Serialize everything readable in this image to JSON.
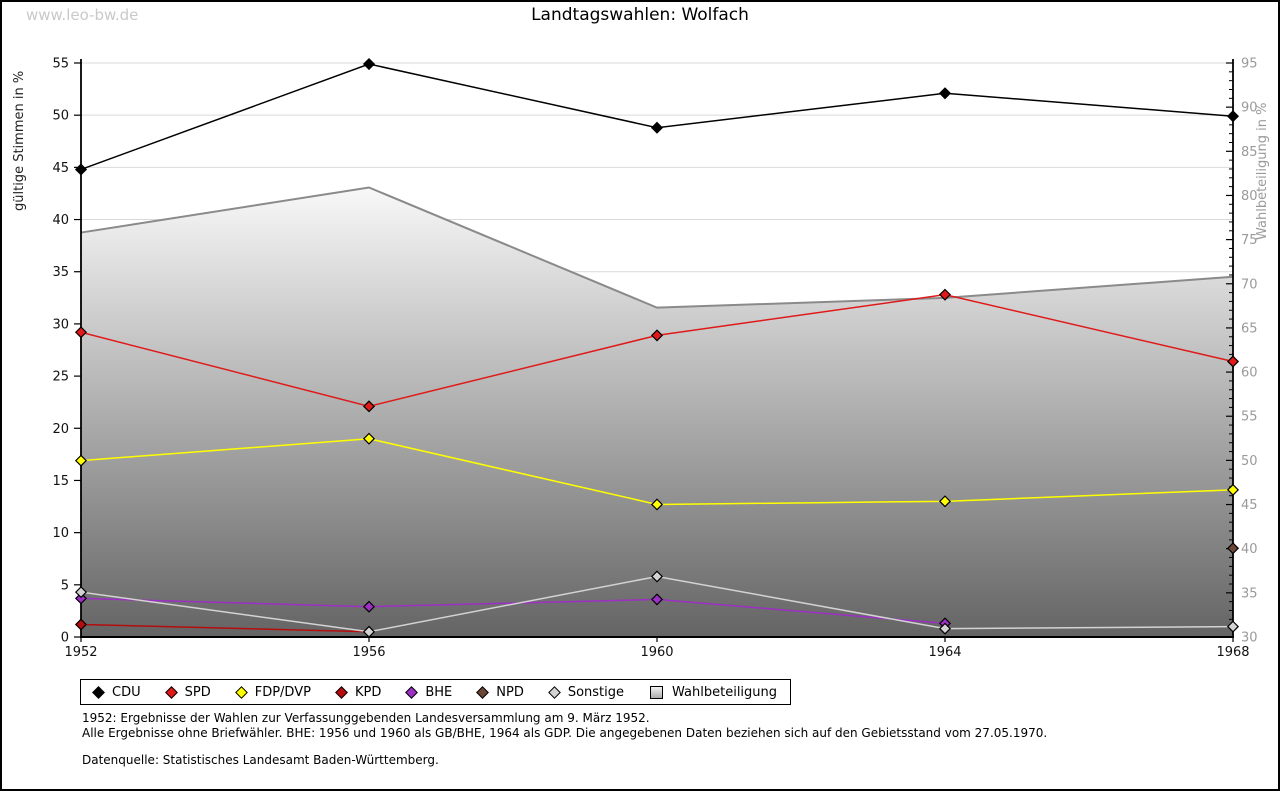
{
  "page": {
    "watermark": "www.leo-bw.de",
    "title": "Landtagswahlen: Wolfach",
    "footnotes": [
      "1952: Ergebnisse der Wahlen zur Verfassunggebenden Landesversammlung am 9. März 1952.",
      "Alle Ergebnisse ohne Briefwähler. BHE: 1956 und 1960 als GB/BHE, 1964 als GDP. Die angegebenen Daten beziehen sich auf den Gebietsstand vom 27.05.1970.",
      "Datenquelle: Statistisches Landesamt Baden-Württemberg."
    ]
  },
  "chart_data": {
    "type": "line",
    "title": "Landtagswahlen: Wolfach",
    "x": [
      1952,
      1956,
      1960,
      1964,
      1968
    ],
    "left_axis": {
      "label": "gültige Stimmen in %",
      "min": 0,
      "max": 55,
      "tick_step": 5
    },
    "right_axis": {
      "label": "Wahlbeteiligung in %",
      "min": 30,
      "max": 95,
      "tick_step": 5,
      "minor_tick_step": 1
    },
    "grid": true,
    "legend_position": "bottom",
    "colors": {
      "grid": "#d9d9d9",
      "axis": "#000000",
      "left_tick_text": "#111111",
      "right_tick_text": "#9a9a9a",
      "area_top": "#f8f8f8",
      "area_bottom": "#646464",
      "watermark": "#c9c9c9"
    },
    "series": [
      {
        "name": "CDU",
        "axis": "left",
        "marker": "diamond",
        "color": "#000000",
        "values": [
          44.8,
          54.9,
          48.8,
          52.1,
          49.9
        ]
      },
      {
        "name": "SPD",
        "axis": "left",
        "marker": "diamond",
        "color": "#e01919",
        "values": [
          29.2,
          22.1,
          28.9,
          32.8,
          26.4
        ]
      },
      {
        "name": "FDP/DVP",
        "axis": "left",
        "marker": "diamond",
        "color": "#ffff00",
        "values": [
          16.9,
          19.0,
          12.7,
          13.0,
          14.1
        ]
      },
      {
        "name": "KPD",
        "axis": "left",
        "marker": "diamond",
        "color": "#b50d0d",
        "values": [
          1.2,
          0.5,
          null,
          null,
          null
        ]
      },
      {
        "name": "BHE",
        "axis": "left",
        "marker": "diamond",
        "color": "#9c2fc4",
        "values": [
          3.7,
          2.9,
          3.6,
          1.3,
          null
        ]
      },
      {
        "name": "NPD",
        "axis": "left",
        "marker": "diamond",
        "color": "#6b4536",
        "values": [
          null,
          null,
          null,
          null,
          8.5
        ]
      },
      {
        "name": "Sonstige",
        "axis": "left",
        "marker": "diamond",
        "color": "#d3d3d3",
        "values": [
          4.3,
          0.5,
          5.8,
          0.8,
          1.0
        ]
      },
      {
        "name": "Wahlbeteiligung",
        "axis": "right",
        "marker": "square",
        "type": "area",
        "color": "#8a8a8a",
        "values": [
          75.8,
          80.9,
          67.3,
          68.4,
          70.8
        ]
      }
    ]
  }
}
